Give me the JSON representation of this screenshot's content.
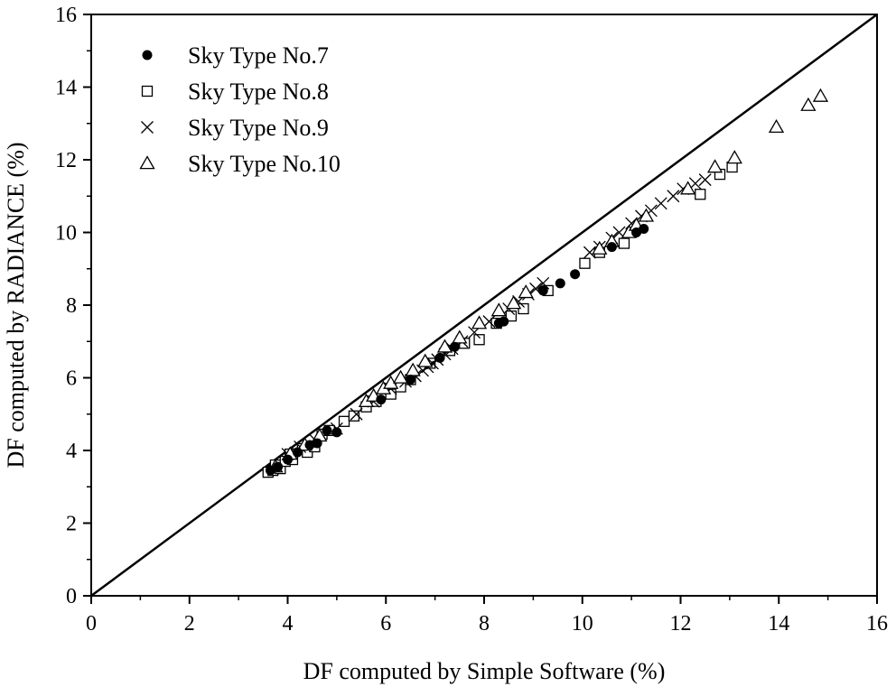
{
  "chart_data": {
    "type": "scatter",
    "title": "",
    "xlabel": "DF computed by Simple Software (%)",
    "ylabel": "DF computed by RADIANCE (%)",
    "xlim": [
      0,
      16
    ],
    "ylim": [
      0,
      16
    ],
    "xticks": [
      0,
      2,
      4,
      6,
      8,
      10,
      12,
      14,
      16
    ],
    "yticks": [
      0,
      2,
      4,
      6,
      8,
      10,
      12,
      14,
      16
    ],
    "grid": false,
    "legend_position": "top-left",
    "reference_line": {
      "from": [
        0,
        0
      ],
      "to": [
        16,
        16
      ]
    },
    "series": [
      {
        "name": "Sky Type No.7",
        "marker": "filled-circle",
        "points": [
          [
            3.65,
            3.45
          ],
          [
            3.8,
            3.55
          ],
          [
            4.0,
            3.75
          ],
          [
            4.2,
            3.95
          ],
          [
            4.45,
            4.15
          ],
          [
            4.6,
            4.2
          ],
          [
            4.8,
            4.55
          ],
          [
            5.0,
            4.5
          ],
          [
            5.9,
            5.4
          ],
          [
            6.5,
            5.95
          ],
          [
            7.1,
            6.55
          ],
          [
            7.4,
            6.85
          ],
          [
            8.3,
            7.5
          ],
          [
            8.4,
            7.55
          ],
          [
            9.2,
            8.4
          ],
          [
            9.55,
            8.6
          ],
          [
            9.85,
            8.85
          ],
          [
            10.6,
            9.6
          ],
          [
            11.1,
            10.0
          ],
          [
            11.25,
            10.1
          ]
        ]
      },
      {
        "name": "Sky Type No.8",
        "marker": "open-square",
        "points": [
          [
            3.6,
            3.4
          ],
          [
            3.7,
            3.45
          ],
          [
            3.75,
            3.6
          ],
          [
            3.85,
            3.5
          ],
          [
            3.95,
            3.7
          ],
          [
            4.05,
            3.9
          ],
          [
            4.1,
            3.75
          ],
          [
            4.3,
            4.05
          ],
          [
            4.4,
            3.95
          ],
          [
            4.55,
            4.1
          ],
          [
            4.7,
            4.45
          ],
          [
            4.85,
            4.55
          ],
          [
            5.15,
            4.8
          ],
          [
            5.35,
            4.95
          ],
          [
            5.6,
            5.2
          ],
          [
            5.8,
            5.35
          ],
          [
            6.1,
            5.55
          ],
          [
            6.3,
            5.75
          ],
          [
            6.5,
            5.95
          ],
          [
            6.9,
            6.4
          ],
          [
            7.3,
            6.75
          ],
          [
            7.6,
            6.95
          ],
          [
            7.9,
            7.05
          ],
          [
            8.25,
            7.5
          ],
          [
            8.55,
            7.7
          ],
          [
            8.8,
            7.9
          ],
          [
            9.3,
            8.4
          ],
          [
            10.05,
            9.15
          ],
          [
            10.35,
            9.45
          ],
          [
            10.85,
            9.7
          ],
          [
            12.4,
            11.05
          ],
          [
            12.8,
            11.6
          ],
          [
            13.05,
            11.8
          ]
        ]
      },
      {
        "name": "Sky Type No.9",
        "marker": "x-cross",
        "points": [
          [
            4.0,
            3.9
          ],
          [
            4.25,
            4.1
          ],
          [
            4.55,
            4.3
          ],
          [
            5.0,
            4.6
          ],
          [
            5.4,
            5.0
          ],
          [
            5.75,
            5.35
          ],
          [
            6.1,
            5.7
          ],
          [
            6.4,
            5.9
          ],
          [
            6.6,
            6.05
          ],
          [
            6.75,
            6.2
          ],
          [
            6.85,
            6.3
          ],
          [
            6.95,
            6.4
          ],
          [
            7.05,
            6.5
          ],
          [
            7.2,
            6.65
          ],
          [
            7.35,
            6.8
          ],
          [
            7.55,
            7.0
          ],
          [
            7.8,
            7.25
          ],
          [
            8.1,
            7.55
          ],
          [
            8.5,
            7.9
          ],
          [
            8.7,
            8.1
          ],
          [
            8.9,
            8.3
          ],
          [
            9.05,
            8.45
          ],
          [
            9.2,
            8.6
          ],
          [
            10.15,
            9.45
          ],
          [
            10.35,
            9.6
          ],
          [
            10.6,
            9.85
          ],
          [
            10.75,
            10.0
          ],
          [
            11.0,
            10.25
          ],
          [
            11.2,
            10.45
          ],
          [
            11.4,
            10.6
          ],
          [
            11.6,
            10.8
          ],
          [
            11.85,
            11.0
          ],
          [
            12.05,
            11.2
          ],
          [
            12.3,
            11.35
          ],
          [
            12.5,
            11.45
          ]
        ]
      },
      {
        "name": "Sky Type No.10",
        "marker": "open-triangle",
        "points": [
          [
            3.75,
            3.55
          ],
          [
            4.05,
            3.9
          ],
          [
            4.35,
            4.15
          ],
          [
            4.65,
            4.4
          ],
          [
            5.6,
            5.35
          ],
          [
            5.75,
            5.5
          ],
          [
            5.95,
            5.7
          ],
          [
            6.1,
            5.85
          ],
          [
            6.3,
            6.0
          ],
          [
            6.55,
            6.2
          ],
          [
            6.8,
            6.45
          ],
          [
            7.2,
            6.85
          ],
          [
            7.5,
            7.1
          ],
          [
            7.9,
            7.5
          ],
          [
            8.3,
            7.85
          ],
          [
            8.6,
            8.05
          ],
          [
            8.85,
            8.35
          ],
          [
            10.35,
            9.55
          ],
          [
            10.6,
            9.75
          ],
          [
            10.95,
            10.0
          ],
          [
            11.1,
            10.2
          ],
          [
            11.3,
            10.45
          ],
          [
            12.15,
            11.2
          ],
          [
            12.7,
            11.8
          ],
          [
            13.1,
            12.05
          ],
          [
            13.95,
            12.9
          ],
          [
            14.6,
            13.5
          ],
          [
            14.85,
            13.75
          ]
        ]
      }
    ]
  }
}
